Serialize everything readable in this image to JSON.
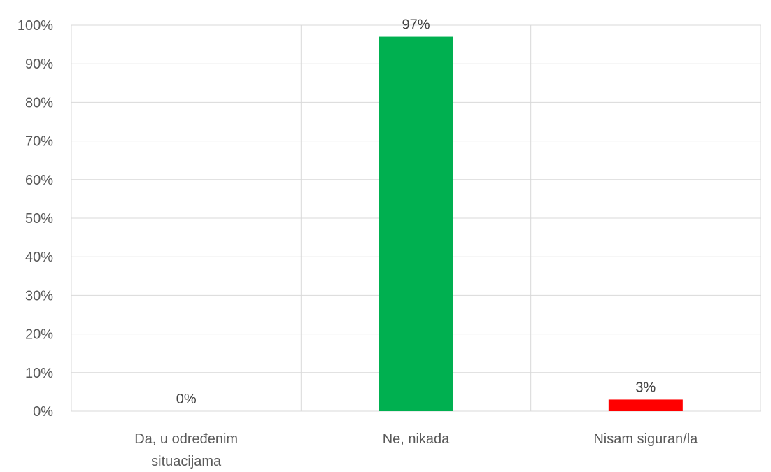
{
  "chart_data": {
    "type": "bar",
    "categories": [
      [
        "Da, u određenim",
        "situacijama"
      ],
      [
        "Ne, nikada"
      ],
      [
        "Nisam siguran/la"
      ]
    ],
    "values": [
      0,
      97,
      3
    ],
    "data_labels": [
      "0%",
      "97%",
      "3%"
    ],
    "bar_colors": [
      "#00b050",
      "#00b050",
      "#ff0000"
    ],
    "ylim": [
      0,
      100
    ],
    "yticks": [
      0,
      10,
      20,
      30,
      40,
      50,
      60,
      70,
      80,
      90,
      100
    ],
    "ytick_labels": [
      "0%",
      "10%",
      "20%",
      "30%",
      "40%",
      "50%",
      "60%",
      "70%",
      "80%",
      "90%",
      "100%"
    ],
    "grid": true,
    "title": "",
    "xlabel": "",
    "ylabel": ""
  }
}
